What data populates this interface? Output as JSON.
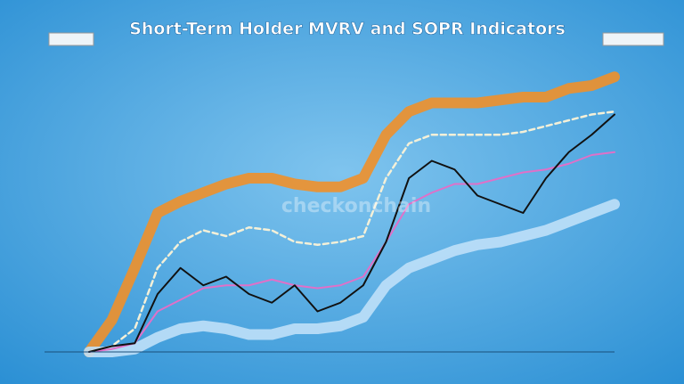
{
  "chart_data": {
    "type": "line",
    "title": "Short-Term Holder MVRV and SOPR Indicators",
    "watermark": "checkonchain",
    "categories": [
      null,
      null,
      null,
      null,
      null,
      null,
      null,
      null,
      null,
      null,
      null,
      null,
      null,
      null,
      null,
      null,
      null,
      null,
      null,
      null,
      null,
      null,
      null,
      null
    ],
    "ylim": [
      0,
      100
    ],
    "series": [
      {
        "color": "#f0902a",
        "style": "band",
        "values": [
          0,
          11,
          29,
          48,
          52,
          55,
          58,
          60,
          60,
          58,
          57,
          57,
          60,
          75,
          83,
          86,
          86,
          86,
          87,
          88,
          88,
          91,
          92,
          95
        ]
      },
      {
        "color": "#bfe0f8",
        "style": "band",
        "values": [
          0,
          0,
          1,
          5,
          8,
          9,
          8,
          6,
          6,
          8,
          8,
          9,
          12,
          23,
          29,
          32,
          35,
          37,
          38,
          40,
          42,
          45,
          48,
          51
        ]
      },
      {
        "color": "#f4f0d8",
        "style": "dashed",
        "values": [
          0,
          2,
          8,
          29,
          38,
          42,
          40,
          43,
          42,
          38,
          37,
          38,
          40,
          60,
          72,
          75,
          75,
          75,
          75,
          76,
          78,
          80,
          82,
          83
        ]
      },
      {
        "color": "#e070c8",
        "style": "solid",
        "values": [
          0,
          1,
          3,
          14,
          18,
          22,
          23,
          23,
          25,
          23,
          22,
          23,
          26,
          38,
          51,
          55,
          58,
          58,
          60,
          62,
          63,
          65,
          68,
          69
        ]
      },
      {
        "color": "#111111",
        "style": "solid",
        "values": [
          0,
          2,
          3,
          20,
          29,
          23,
          26,
          20,
          17,
          23,
          14,
          17,
          23,
          38,
          60,
          66,
          63,
          54,
          51,
          48,
          60,
          69,
          75,
          82
        ]
      }
    ]
  }
}
